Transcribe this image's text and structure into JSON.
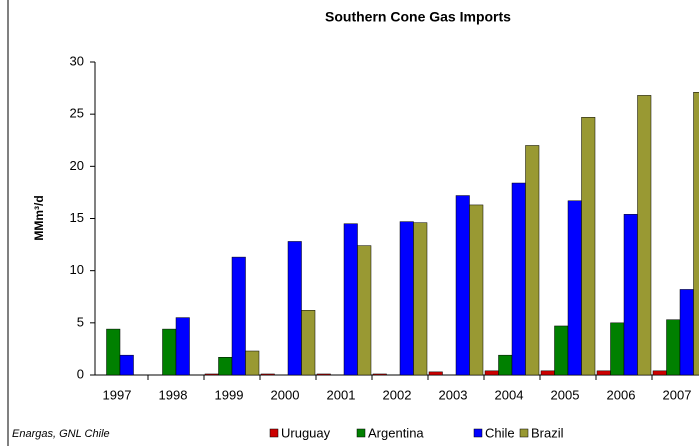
{
  "chart_data": {
    "type": "bar",
    "title": "Southern Cone Gas Imports",
    "y_label": "MMm³/d",
    "source": "Enargas, GNL Chile",
    "categories": [
      "1997",
      "1998",
      "1999",
      "2000",
      "2001",
      "2002",
      "2003",
      "2004",
      "2005",
      "2006",
      "2007"
    ],
    "series": [
      {
        "name": "Uruguay",
        "color": "#cc0000",
        "values": [
          0,
          0,
          0.1,
          0.1,
          0.1,
          0.1,
          0.3,
          0.4,
          0.4,
          0.4,
          0.4
        ]
      },
      {
        "name": "Argentina",
        "color": "#008000",
        "values": [
          4.4,
          4.4,
          1.7,
          0,
          0,
          0,
          0,
          1.9,
          4.7,
          5.0,
          5.3
        ]
      },
      {
        "name": "Chile",
        "color": "#0000ff",
        "values": [
          1.9,
          5.5,
          11.3,
          12.8,
          14.5,
          14.7,
          17.2,
          18.4,
          16.7,
          15.4,
          8.2
        ]
      },
      {
        "name": "Brazil",
        "color": "#999933",
        "values": [
          0,
          0,
          2.3,
          6.2,
          12.4,
          14.6,
          16.3,
          22.0,
          24.7,
          26.8,
          27.1
        ]
      }
    ],
    "ylim": [
      0,
      30
    ],
    "yticks": [
      0,
      5,
      10,
      15,
      20,
      25,
      30
    ],
    "grid": false,
    "legend": "bottom"
  }
}
